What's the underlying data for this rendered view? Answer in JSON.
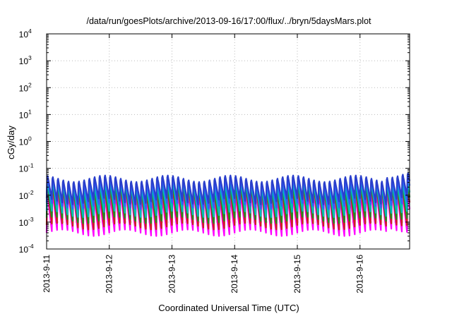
{
  "chart_data": {
    "type": "line",
    "title": "/data/run/goesPlots/archive/2013-09-16/17:00/flux/../bryn/5daysMars.plot",
    "xlabel": "Coordinated Universal Time (UTC)",
    "ylabel": "cGy/day",
    "yscale": "log",
    "ylim": [
      0.0001,
      10000
    ],
    "xlim": [
      "2013-09-11 00:00",
      "2013-09-16 19:00"
    ],
    "grid": true,
    "y_ticks": [
      {
        "base": "10",
        "exp": "4"
      },
      {
        "base": "10",
        "exp": "3"
      },
      {
        "base": "10",
        "exp": "2"
      },
      {
        "base": "10",
        "exp": "1"
      },
      {
        "base": "10",
        "exp": "0"
      },
      {
        "base": "10",
        "exp": "-1"
      },
      {
        "base": "10",
        "exp": "-2"
      },
      {
        "base": "10",
        "exp": "-3"
      },
      {
        "base": "10",
        "exp": "-4"
      }
    ],
    "x_ticks": [
      "2013-9-11",
      "2013-9-12",
      "2013-9-13",
      "2013-9-14",
      "2013-9-15",
      "2013-9-16"
    ],
    "orbit_period_hours": 2.0,
    "series": [
      {
        "color": "#ff00ff",
        "peak": 0.012,
        "trough": 0.0004
      },
      {
        "color": "#cc2020",
        "peak": 0.02,
        "trough": 0.0007
      },
      {
        "color": "#228b22",
        "peak": 0.025,
        "trough": 0.0012
      },
      {
        "color": "#00bbbb",
        "peak": 0.03,
        "trough": 0.002
      },
      {
        "color": "#3060ff",
        "peak": 0.04,
        "trough": 0.004
      },
      {
        "color": "#2a3fcc",
        "peak": 0.05,
        "trough": 0.006
      }
    ]
  }
}
